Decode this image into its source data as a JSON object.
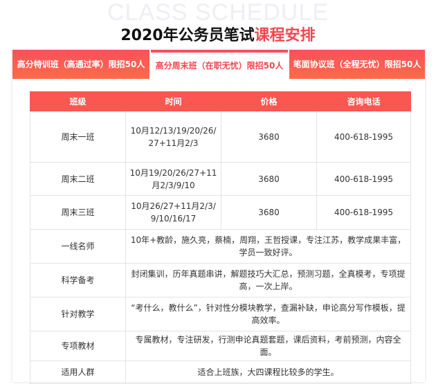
{
  "watermark": "CLASS SCHEDULE",
  "title": {
    "black": "2020年公务员笔试",
    "red": "课程安排"
  },
  "tabs": [
    {
      "label": "高分特训班（高通过率）限招50人"
    },
    {
      "label": "高分周末班（在职无忧）限招50人",
      "active": true
    },
    {
      "label": "笔面协议班（全程无忧）限招50人"
    }
  ],
  "table": {
    "headers": [
      "班级",
      "时间",
      "价格",
      "咨询电话"
    ],
    "rows": [
      [
        "周末一班",
        "10月12/13/19/20/26/27+11月2/3",
        "3680",
        "400-618-1995"
      ],
      [
        "周末二班",
        "10月19/20/26/27+11月2/3/9/10",
        "3680",
        "400-618-1995"
      ],
      [
        "周末三班",
        "10月26/27+11月2/3/9/10/16/17",
        "3680",
        "400-618-1995"
      ]
    ],
    "features": [
      [
        "一线名师",
        "10年+教龄，施久亮，蔡楠，周翔，王哲授课，专注江苏，教学成果丰富，学员一致好评。"
      ],
      [
        "科学备考",
        "封闭集训，历年真题串讲，解题技巧大汇总，预测习题，全真模考，专项提高，一次上岸。"
      ],
      [
        "针对教学",
        "“考什么，教什么”，针对性分模块教学，查漏补缺，申论高分写作模板，提高效率。"
      ],
      [
        "专项教材",
        "专属教材，专注研发，行测申论真题套题，课后资料，考前预测，内容全面。"
      ],
      [
        "适用人群",
        "适合上班族，大四课程比较多的学生。"
      ]
    ]
  },
  "colors": {
    "accent": "#f9505a"
  }
}
